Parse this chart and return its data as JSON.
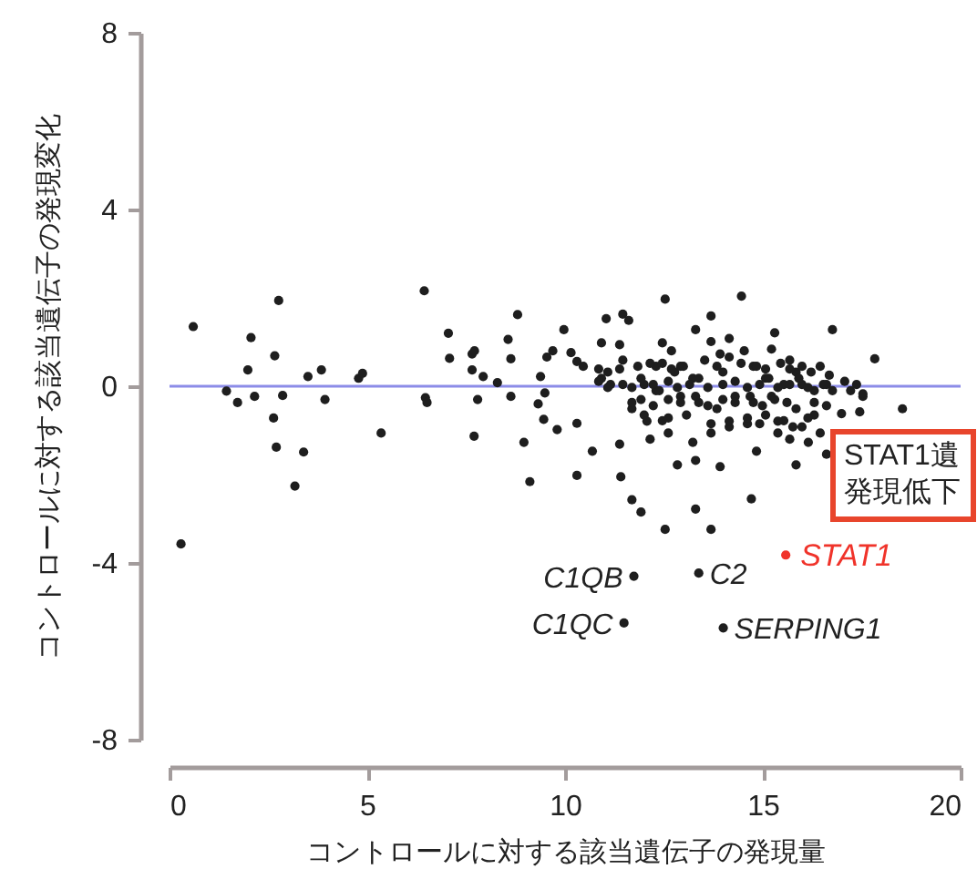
{
  "chart_data": {
    "type": "scatter",
    "xlabel": "コントロールに対する該当遺伝子の発現量",
    "ylabel": "コントロールに対する該当遺伝子の発現変化",
    "xlim": [
      0,
      20
    ],
    "xticks": [
      0,
      5,
      10,
      15,
      20
    ],
    "ylim": [
      -8,
      8
    ],
    "yticks": [
      -8,
      -4,
      0,
      4,
      8
    ],
    "marker": "circle",
    "ref_lines": [
      {
        "axis": "y",
        "value": 0,
        "color": "#8c8ce8"
      }
    ],
    "series": [
      {
        "color": "#1e1e1e",
        "x": [
          0.29,
          0.6,
          1.44,
          1.72,
          1.98,
          2.06,
          2.15,
          2.63,
          2.66,
          2.7,
          2.76,
          2.86,
          3.17,
          3.39,
          3.5,
          3.84,
          3.93,
          4.78,
          4.88,
          5.35,
          6.44,
          6.47,
          6.51,
          7.05,
          7.08,
          7.65,
          7.71,
          7.65,
          7.7,
          7.79,
          7.93,
          8.29,
          8.56,
          8.63,
          8.63,
          8.8,
          8.96,
          9.11,
          9.32,
          9.38,
          9.46,
          9.49,
          9.54,
          9.69,
          9.8,
          9.97,
          10.15,
          10.3,
          10.3,
          10.3,
          10.69,
          10.92,
          10.92,
          11.04,
          11.15,
          11.38,
          11.38,
          11.41,
          11.46,
          11.46,
          11.61,
          11.69,
          11.69,
          11.69,
          11.92,
          12.0,
          12.0,
          12.15,
          12.3,
          12.3,
          12.46,
          12.46,
          12.53,
          12.53,
          12.61,
          12.69,
          12.77,
          12.84,
          12.92,
          12.92,
          13.23,
          13.23,
          13.3,
          13.3,
          13.3,
          13.38,
          13.69,
          13.69,
          13.69,
          13.69,
          13.84,
          13.92,
          13.92,
          13.99,
          14.15,
          14.15,
          14.3,
          14.46,
          14.53,
          14.61,
          14.71,
          14.76,
          14.76,
          14.84,
          15.07,
          15.07,
          15.22,
          15.22,
          15.3,
          15.38,
          15.53,
          15.53,
          15.68,
          15.68,
          15.84,
          15.84,
          15.99,
          15.99,
          16.15,
          16.3,
          16.3,
          16.45,
          16.61,
          16.61,
          16.76,
          16.99,
          17.07,
          17.37,
          17.45,
          17.53,
          17.83,
          18.53,
          11.49,
          11.74,
          13.38,
          14.0,
          10.46,
          10.85,
          11.08,
          11.38,
          11.84,
          12.15,
          12.46,
          12.69,
          12.99,
          13.53,
          13.84,
          14.15,
          14.45,
          14.84,
          15.07,
          15.45,
          15.68,
          15.99,
          16.22,
          16.68,
          10.85,
          11.08,
          11.46,
          11.92,
          12.23,
          12.38,
          12.61,
          12.84,
          13.15,
          13.38,
          13.61,
          13.99,
          14.3,
          14.61,
          14.92,
          15.15,
          15.38,
          15.68,
          15.91,
          16.14,
          16.53,
          16.76,
          17.22,
          17.53,
          11.69,
          11.92,
          12.23,
          12.61,
          12.92,
          13.3,
          13.61,
          13.99,
          14.3,
          14.68,
          14.99,
          15.3,
          15.61,
          15.84,
          16.3,
          16.61,
          12.07,
          12.61,
          13.07,
          13.69,
          14.15,
          14.61,
          14.92,
          15.38,
          15.76,
          16.14,
          16.45
        ],
        "values": [
          -3.57,
          1.35,
          -0.11,
          -0.37,
          0.37,
          1.1,
          -0.23,
          -0.72,
          0.69,
          -1.38,
          1.94,
          -0.21,
          -2.26,
          -1.49,
          0.22,
          0.37,
          -0.3,
          0.18,
          0.29,
          -1.06,
          2.16,
          -0.26,
          -0.37,
          1.2,
          0.63,
          0.73,
          0.8,
          0.37,
          -1.13,
          -0.3,
          0.22,
          0.08,
          1.06,
          0.62,
          -0.23,
          1.62,
          -1.27,
          -2.16,
          -0.4,
          0.22,
          -0.75,
          -0.15,
          0.66,
          0.8,
          -0.98,
          1.28,
          0.76,
          0.56,
          -0.84,
          -2.02,
          -1.47,
          0.98,
          0.18,
          1.53,
          0.04,
          0.94,
          -1.31,
          -2.05,
          1.63,
          0.59,
          1.49,
          -0.03,
          -0.51,
          -2.57,
          -2.85,
          0.04,
          -0.65,
          -1.2,
          -0.1,
          0.45,
          0.98,
          -0.78,
          1.97,
          -3.24,
          -1.06,
          0.8,
          0.32,
          -1.78,
          -0.23,
          0.45,
          0.18,
          -1.27,
          1.28,
          -1.68,
          -2.78,
          -0.37,
          1.59,
          1.01,
          -1.06,
          -3.24,
          -0.51,
          0.73,
          -1.82,
          0.32,
          1.08,
          -0.92,
          -0.23,
          2.04,
          0.8,
          -0.85,
          -2.55,
          0.45,
          -0.37,
          -1.47,
          0.18,
          -0.65,
          0.84,
          -0.23,
          1.21,
          -1.06,
          0.04,
          -0.78,
          0.59,
          -1.2,
          0.32,
          -1.78,
          0.04,
          -0.92,
          -1.27,
          -0.1,
          -0.65,
          0.45,
          0.04,
          -1.54,
          1.28,
          -0.62,
          0.11,
          0.04,
          -0.58,
          -0.23,
          0.62,
          -0.51,
          -5.36,
          -4.3,
          -4.23,
          -5.47,
          0.45,
          0.39,
          0.32,
          0.39,
          0.45,
          0.52,
          0.52,
          0.39,
          0.45,
          0.59,
          0.45,
          0.66,
          0.52,
          0.45,
          0.39,
          0.52,
          0.39,
          0.45,
          0.32,
          0.25,
          0.11,
          -0.03,
          0.04,
          0.18,
          0.04,
          -0.1,
          0.11,
          -0.03,
          0.04,
          0.18,
          -0.03,
          0.04,
          0.11,
          -0.03,
          0.04,
          0.18,
          -0.03,
          0.04,
          0.18,
          -0.03,
          0.04,
          -0.1,
          -0.1,
          -0.17,
          -0.37,
          -0.3,
          -0.44,
          -0.3,
          -0.37,
          -0.23,
          -0.44,
          -0.3,
          -0.37,
          -0.23,
          -0.44,
          -0.3,
          -0.37,
          -0.51,
          -0.37,
          -0.44,
          -0.79,
          -0.72,
          -0.65,
          -0.85,
          -0.79,
          -0.72,
          -0.85,
          -0.79,
          -0.92,
          -0.72,
          -1.06
        ]
      },
      {
        "name": "STAT1",
        "color": "#f0332a",
        "x": [
          15.58
        ],
        "values": [
          -3.82
        ]
      }
    ],
    "annotations": [
      {
        "text": "C1QB",
        "x": 11.74,
        "y": -4.3
      },
      {
        "text": "C2",
        "x": 13.38,
        "y": -4.23
      },
      {
        "text": "C1QC",
        "x": 11.49,
        "y": -5.36
      },
      {
        "text": "SERPING1",
        "x": 14.0,
        "y": -5.47
      },
      "STAT1遺",
      "発現低下"
    ]
  }
}
